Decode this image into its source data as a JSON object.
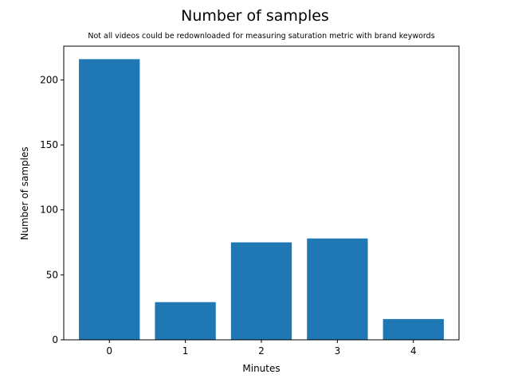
{
  "chart_data": {
    "type": "bar",
    "title": "Number of samples",
    "subtitle": "Not all videos could be redownloaded for measuring saturation metric with brand keywords",
    "xlabel": "Minutes",
    "ylabel": "Number of samples",
    "categories": [
      "0",
      "1",
      "2",
      "3",
      "4"
    ],
    "values": [
      216,
      29,
      75,
      78,
      16
    ],
    "xlim": [
      -0.6,
      4.6
    ],
    "ylim": [
      0,
      226
    ],
    "yticks": [
      0,
      50,
      100,
      150,
      200
    ],
    "bar_color": "#1f77b4",
    "grid": false,
    "legend": "none"
  }
}
